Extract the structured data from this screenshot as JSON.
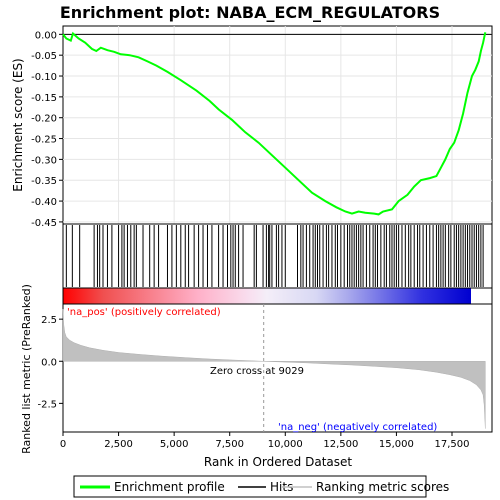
{
  "chart_data": {
    "type": "line",
    "title": "Enrichment plot: NABA_ECM_REGULATORS",
    "panels": {
      "es": {
        "ylabel": "Enrichment score (ES)",
        "ylim": [
          -0.455,
          0.02
        ],
        "yticks": [
          "0.00",
          "-0.05",
          "-0.10",
          "-0.15",
          "-0.20",
          "-0.25",
          "-0.30",
          "-0.35",
          "-0.40",
          "-0.45"
        ],
        "ytick_values": [
          0.0,
          -0.05,
          -0.1,
          -0.15,
          -0.2,
          -0.25,
          -0.3,
          -0.35,
          -0.4,
          -0.45
        ],
        "grid": true,
        "series": [
          {
            "name": "Enrichment profile",
            "color": "#00ff00",
            "x": [
              0,
              150,
              350,
              450,
              700,
              1000,
              1300,
              1500,
              1700,
              2000,
              2300,
              2600,
              3000,
              3400,
              3800,
              4200,
              4700,
              5300,
              6000,
              6600,
              7000,
              7600,
              8200,
              8800,
              9400,
              10000,
              10600,
              11200,
              11800,
              12300,
              12700,
              13000,
              13300,
              13600,
              14000,
              14200,
              14400,
              14800,
              15100,
              15500,
              15800,
              16100,
              16500,
              16800,
              17000,
              17200,
              17400,
              17600,
              17800,
              18000,
              18200,
              18400,
              18550,
              18700,
              18800,
              18900,
              19000
            ],
            "y": [
              0.0,
              -0.01,
              -0.015,
              0.002,
              -0.01,
              -0.02,
              -0.035,
              -0.04,
              -0.032,
              -0.038,
              -0.042,
              -0.048,
              -0.05,
              -0.055,
              -0.065,
              -0.075,
              -0.09,
              -0.11,
              -0.135,
              -0.16,
              -0.18,
              -0.205,
              -0.235,
              -0.26,
              -0.29,
              -0.32,
              -0.35,
              -0.38,
              -0.4,
              -0.415,
              -0.425,
              -0.43,
              -0.425,
              -0.428,
              -0.43,
              -0.432,
              -0.425,
              -0.42,
              -0.4,
              -0.385,
              -0.365,
              -0.35,
              -0.345,
              -0.34,
              -0.32,
              -0.3,
              -0.275,
              -0.26,
              -0.23,
              -0.19,
              -0.14,
              -0.1,
              -0.085,
              -0.065,
              -0.04,
              -0.02,
              0.005
            ]
          }
        ]
      },
      "hits": {
        "series_name": "Hits",
        "color": "#000000",
        "positions": [
          150,
          420,
          750,
          1400,
          1550,
          1650,
          1800,
          2000,
          2200,
          2500,
          2650,
          2750,
          2900,
          3050,
          3200,
          3300,
          3600,
          3900,
          4100,
          4300,
          4700,
          4900,
          5100,
          5300,
          5500,
          5650,
          5900,
          6100,
          6300,
          6500,
          6700,
          7000,
          7200,
          7400,
          7550,
          7650,
          7750,
          7900,
          8100,
          8600,
          8700,
          9000,
          9150,
          9250,
          9300,
          9400,
          9600,
          9700,
          9850,
          10000,
          10550,
          10700,
          10800,
          10950,
          11100,
          11250,
          11350,
          11450,
          11550,
          11700,
          11850,
          11950,
          12100,
          12250,
          12350,
          12500,
          12650,
          12800,
          12900,
          13000,
          13100,
          13200,
          13300,
          13400,
          13500,
          13650,
          13800,
          13950,
          14050,
          14150,
          14300,
          14450,
          14550,
          14700,
          14800,
          14900,
          15000,
          15100,
          15250,
          15400,
          15550,
          15650,
          15800,
          15950,
          16050,
          16200,
          16350,
          16500,
          16650,
          16800,
          16900,
          17000,
          17100,
          17200,
          17350,
          17450,
          17600,
          17700,
          17800,
          17900,
          18000,
          18100,
          18200,
          18300,
          18400,
          18500,
          18600,
          18700,
          18800,
          18900
        ]
      },
      "ranking": {
        "ylabel": "Ranked list metric (PreRanked)",
        "xlabel": "Rank in Ordered Dataset",
        "ylim": [
          -4.2,
          3.4
        ],
        "yticks": [
          "2.5",
          "0.0",
          "-2.5"
        ],
        "ytick_values": [
          2.5,
          0.0,
          -2.5
        ],
        "xlim": [
          0,
          19300
        ],
        "xticks": [
          "0",
          "2,500",
          "5,000",
          "7,500",
          "10,000",
          "12,500",
          "15,000",
          "17,500"
        ],
        "xtick_values": [
          0,
          2500,
          5000,
          7500,
          10000,
          12500,
          15000,
          17500
        ],
        "series_name": "Ranking metric scores",
        "fill_color": "#c0c0c0",
        "x": [
          0,
          30,
          80,
          150,
          300,
          500,
          800,
          1200,
          1800,
          2500,
          3500,
          4500,
          5500,
          6500,
          7500,
          8500,
          9029,
          10000,
          11000,
          12000,
          13000,
          14000,
          15000,
          16000,
          16800,
          17400,
          17900,
          18300,
          18600,
          18800,
          18900,
          18950,
          19000
        ],
        "y": [
          3.1,
          2.2,
          1.7,
          1.45,
          1.25,
          1.1,
          0.95,
          0.8,
          0.65,
          0.52,
          0.4,
          0.3,
          0.22,
          0.14,
          0.08,
          0.03,
          0.0,
          -0.05,
          -0.1,
          -0.16,
          -0.22,
          -0.3,
          -0.38,
          -0.5,
          -0.65,
          -0.8,
          -0.95,
          -1.15,
          -1.4,
          -1.7,
          -2.0,
          -2.6,
          -4.0
        ],
        "zero_cross": 9029,
        "zero_cross_label": "Zero cross at 9029",
        "pos_label": "'na_pos' (positively correlated)",
        "neg_label": "'na_neg' (negatively correlated)"
      }
    },
    "legend": {
      "placement": "bottom",
      "entries": [
        {
          "label": "Enrichment profile",
          "color": "#00ff00"
        },
        {
          "label": "Hits",
          "color": "#000000"
        },
        {
          "label": "Ranking metric scores",
          "color": "#c0c0c0"
        }
      ]
    }
  }
}
